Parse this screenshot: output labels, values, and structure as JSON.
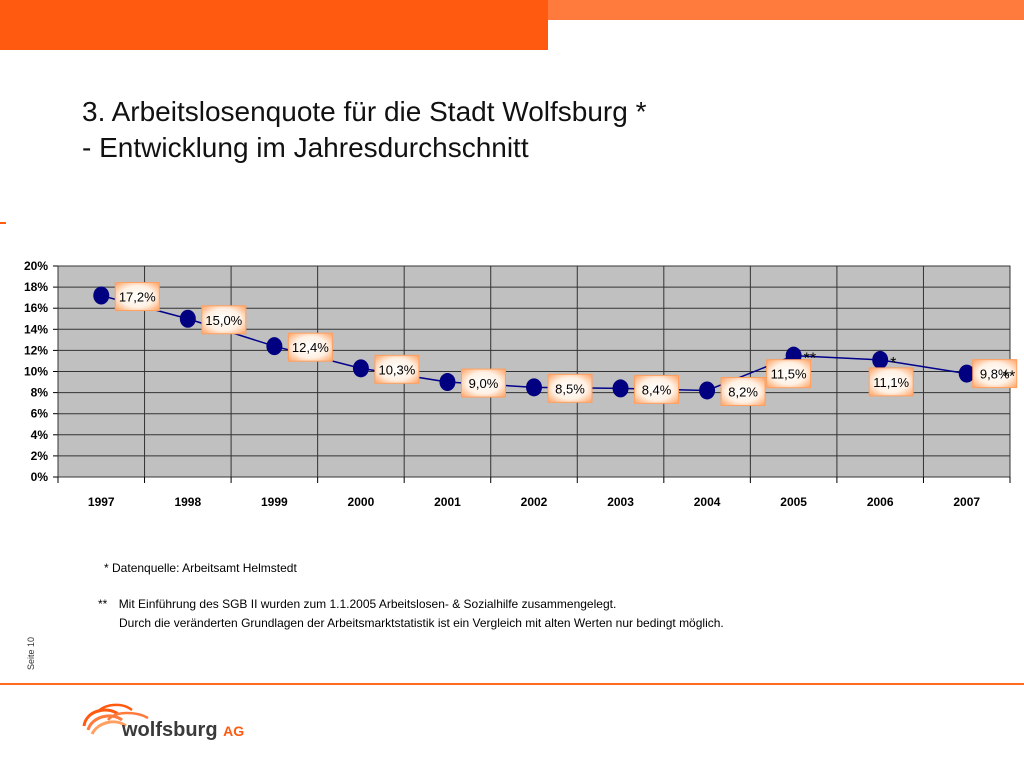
{
  "slide": {
    "title_line1": "3. Arbeitslosenquote für die Stadt Wolfsburg *",
    "title_line2": "- Entwicklung im Jahresdurchschnitt",
    "note1_marker": "*",
    "note1_text": "Datenquelle: Arbeitsamt Helmstedt",
    "note2_marker": "**",
    "note2_line1": "Mit Einführung des SGB II wurden zum 1.1.2005 Arbeitslosen- & Sozialhilfe zusammengelegt.",
    "note2_line2": "Durch die veränderten Grundlagen der Arbeitsmarktstatistik ist ein Vergleich mit alten Werten nur bedingt möglich.",
    "page_label": "Seite 10",
    "logo_text": "wolfsburg",
    "logo_suffix": "AG"
  },
  "colors": {
    "brand_orange": "#ff5a10",
    "brand_orange_light": "#ff7a3d",
    "plot_background": "#c0c0c0",
    "series_line": "#00008b",
    "marker": "#000080",
    "label_box": "#ffa060"
  },
  "chart_data": {
    "type": "line",
    "title": "",
    "xlabel": "",
    "ylabel": "",
    "categories": [
      "1997",
      "1998",
      "1999",
      "2000",
      "2001",
      "2002",
      "2003",
      "2004",
      "2005",
      "2006",
      "2007"
    ],
    "series": [
      {
        "values": [
          17.2,
          15.0,
          12.4,
          10.3,
          9.0,
          8.5,
          8.4,
          8.2,
          11.5,
          11.1,
          9.8
        ]
      }
    ],
    "data_labels": [
      "17,2%",
      "15,0%",
      "12,4%",
      "10,3%",
      "9,0%",
      "8,5%",
      "8,4%",
      "8,2%",
      "11,5%",
      "11,1%",
      "9,8%"
    ],
    "annotations": {
      "2005": "**",
      "2006": "*",
      "2007": "**"
    },
    "ylim": [
      0,
      20
    ],
    "y_ticks": [
      "0%",
      "2%",
      "4%",
      "6%",
      "8%",
      "10%",
      "12%",
      "14%",
      "16%",
      "18%",
      "20%"
    ],
    "grid": true,
    "legend": "none"
  }
}
